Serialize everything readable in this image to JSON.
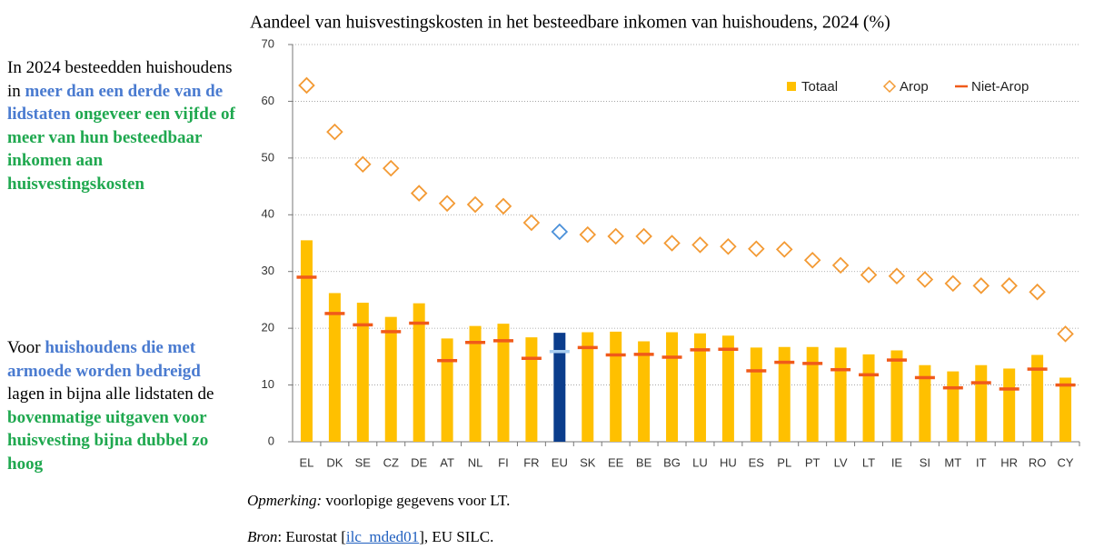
{
  "side_text": [
    [
      {
        "text": "In 2024 besteedden huishoudens in "
      },
      {
        "text": "meer dan een derde van de lidstaten",
        "color": "#4a7bd0"
      },
      {
        "text": " "
      },
      {
        "text": "ongeveer een vijfde of meer van hun besteedbaar inkomen aan huisvestingskosten",
        "color": "#1fa84f"
      }
    ],
    [
      {
        "text": "Voor "
      },
      {
        "text": "huishoudens die met armoede worden bedreigd",
        "color": "#4a7bd0"
      },
      {
        "text": " lagen in bijna alle lidstaten de "
      },
      {
        "text": "bovenmatige uitgaven voor huisvesting bijna dubbel zo hoog",
        "color": "#1fa84f"
      }
    ]
  ],
  "notes": [
    [
      {
        "text": "Opmerking:",
        "italic": true
      },
      {
        "text": " voorlopige gegevens voor LT."
      }
    ],
    [
      {
        "text": "Bron",
        "italic": true
      },
      {
        "text": ": Eurostat ["
      },
      {
        "text": "ilc_mded01",
        "link": true
      },
      {
        "text": "], EU SILC."
      }
    ]
  ],
  "chart_data": {
    "type": "bar",
    "title": "Aandeel van huisvestingskosten in het besteedbare inkomen van huishoudens, 2024 (%)",
    "categories": [
      "EL",
      "DK",
      "SE",
      "CZ",
      "DE",
      "AT",
      "NL",
      "FI",
      "FR",
      "EU",
      "SK",
      "EE",
      "BE",
      "BG",
      "LU",
      "HU",
      "ES",
      "PL",
      "PT",
      "LV",
      "LT",
      "IE",
      "SI",
      "MT",
      "IT",
      "HR",
      "RO",
      "CY"
    ],
    "highlight_index": 9,
    "series": [
      {
        "name": "Totaal",
        "mark": "bar",
        "color": "#ffc000",
        "highlight_color": "#0b3d8c",
        "values": [
          35.5,
          26.2,
          24.5,
          22,
          24.4,
          18.2,
          20.4,
          20.8,
          18.4,
          19.2,
          19.3,
          19.4,
          17.7,
          19.3,
          19.1,
          18.7,
          16.6,
          16.7,
          16.7,
          16.6,
          15.4,
          16.1,
          13.5,
          12.4,
          13.5,
          12.9,
          15.3,
          11.3
        ]
      },
      {
        "name": "Arop",
        "mark": "diamond",
        "color": "#f39a34",
        "highlight_color": "#4a90d9",
        "values": [
          62.8,
          54.6,
          48.9,
          48.2,
          43.8,
          42,
          41.8,
          41.5,
          38.6,
          37,
          36.5,
          36.2,
          36.2,
          35,
          34.7,
          34.4,
          34,
          33.9,
          32,
          31.1,
          29.4,
          29.2,
          28.6,
          27.9,
          27.5,
          27.5,
          26.4,
          19
        ]
      },
      {
        "name": "Niet-Arop",
        "mark": "dash",
        "color": "#f05a1a",
        "highlight_color": "#a8cdf0",
        "values": [
          29,
          22.6,
          20.6,
          19.4,
          20.9,
          14.3,
          17.5,
          17.8,
          14.7,
          15.9,
          16.6,
          15.3,
          15.4,
          14.9,
          16.2,
          16.3,
          12.5,
          14,
          13.8,
          12.7,
          11.8,
          14.4,
          11.3,
          9.5,
          10.4,
          9.3,
          12.8,
          10
        ]
      }
    ],
    "ylim": [
      0,
      70
    ],
    "yticks": [
      0,
      10,
      20,
      30,
      40,
      50,
      60,
      70
    ],
    "grid": true,
    "legend": "top-right"
  }
}
